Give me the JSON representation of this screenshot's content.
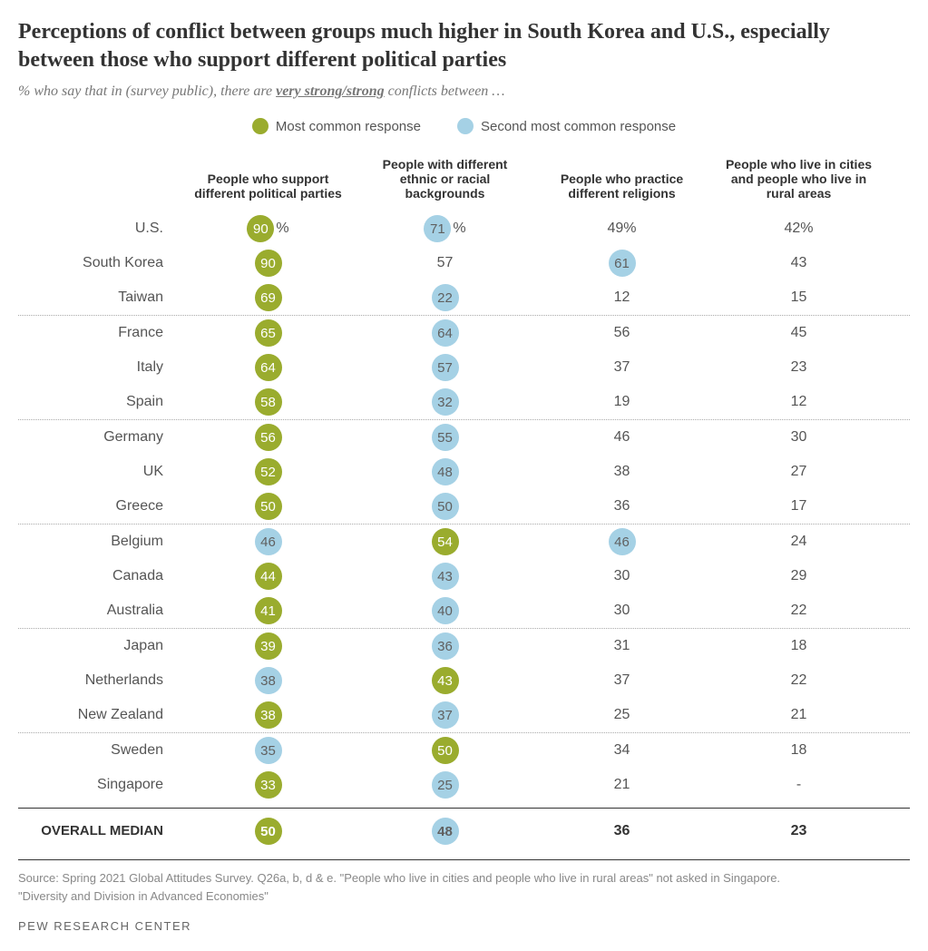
{
  "title": "Perceptions of conflict between groups much higher in South Korea and U.S., especially between those who support different political parties",
  "subtitle_pre": "% who say that in (survey public), there are ",
  "subtitle_highlight": "very strong/strong",
  "subtitle_post": " conflicts between …",
  "legend": {
    "most": "Most common response",
    "second": "Second most common response"
  },
  "colors": {
    "most": "#9aac2e",
    "second": "#a5d1e5",
    "background": "#ffffff",
    "text_second": "#606060"
  },
  "columns": [
    "People who support different political parties",
    "People with different ethnic or racial backgrounds",
    "People who practice different religions",
    "People who live in cities and people who live in rural areas"
  ],
  "groups": [
    [
      {
        "label": "U.S.",
        "values": [
          {
            "v": "90",
            "h": "most",
            "suffix": "%"
          },
          {
            "v": "71",
            "h": "second",
            "suffix": "%"
          },
          {
            "v": "49",
            "suffix": "%"
          },
          {
            "v": "42",
            "suffix": "%"
          }
        ]
      },
      {
        "label": "South Korea",
        "values": [
          {
            "v": "90",
            "h": "most"
          },
          {
            "v": "57"
          },
          {
            "v": "61",
            "h": "second"
          },
          {
            "v": "43"
          }
        ]
      },
      {
        "label": "Taiwan",
        "values": [
          {
            "v": "69",
            "h": "most"
          },
          {
            "v": "22",
            "h": "second"
          },
          {
            "v": "12"
          },
          {
            "v": "15"
          }
        ]
      }
    ],
    [
      {
        "label": "France",
        "values": [
          {
            "v": "65",
            "h": "most"
          },
          {
            "v": "64",
            "h": "second"
          },
          {
            "v": "56"
          },
          {
            "v": "45"
          }
        ]
      },
      {
        "label": "Italy",
        "values": [
          {
            "v": "64",
            "h": "most"
          },
          {
            "v": "57",
            "h": "second"
          },
          {
            "v": "37"
          },
          {
            "v": "23"
          }
        ]
      },
      {
        "label": "Spain",
        "values": [
          {
            "v": "58",
            "h": "most"
          },
          {
            "v": "32",
            "h": "second"
          },
          {
            "v": "19"
          },
          {
            "v": "12"
          }
        ]
      }
    ],
    [
      {
        "label": "Germany",
        "values": [
          {
            "v": "56",
            "h": "most"
          },
          {
            "v": "55",
            "h": "second"
          },
          {
            "v": "46"
          },
          {
            "v": "30"
          }
        ]
      },
      {
        "label": "UK",
        "values": [
          {
            "v": "52",
            "h": "most"
          },
          {
            "v": "48",
            "h": "second"
          },
          {
            "v": "38"
          },
          {
            "v": "27"
          }
        ]
      },
      {
        "label": "Greece",
        "values": [
          {
            "v": "50",
            "h": "most"
          },
          {
            "v": "50",
            "h": "second"
          },
          {
            "v": "36"
          },
          {
            "v": "17"
          }
        ]
      }
    ],
    [
      {
        "label": "Belgium",
        "values": [
          {
            "v": "46",
            "h": "second"
          },
          {
            "v": "54",
            "h": "most"
          },
          {
            "v": "46",
            "h": "second"
          },
          {
            "v": "24"
          }
        ]
      },
      {
        "label": "Canada",
        "values": [
          {
            "v": "44",
            "h": "most"
          },
          {
            "v": "43",
            "h": "second"
          },
          {
            "v": "30"
          },
          {
            "v": "29"
          }
        ]
      },
      {
        "label": "Australia",
        "values": [
          {
            "v": "41",
            "h": "most"
          },
          {
            "v": "40",
            "h": "second"
          },
          {
            "v": "30"
          },
          {
            "v": "22"
          }
        ]
      }
    ],
    [
      {
        "label": "Japan",
        "values": [
          {
            "v": "39",
            "h": "most"
          },
          {
            "v": "36",
            "h": "second"
          },
          {
            "v": "31"
          },
          {
            "v": "18"
          }
        ]
      },
      {
        "label": "Netherlands",
        "values": [
          {
            "v": "38",
            "h": "second"
          },
          {
            "v": "43",
            "h": "most"
          },
          {
            "v": "37"
          },
          {
            "v": "22"
          }
        ]
      },
      {
        "label": "New Zealand",
        "values": [
          {
            "v": "38",
            "h": "most"
          },
          {
            "v": "37",
            "h": "second"
          },
          {
            "v": "25"
          },
          {
            "v": "21"
          }
        ]
      }
    ],
    [
      {
        "label": "Sweden",
        "values": [
          {
            "v": "35",
            "h": "second"
          },
          {
            "v": "50",
            "h": "most"
          },
          {
            "v": "34"
          },
          {
            "v": "18"
          }
        ]
      },
      {
        "label": "Singapore",
        "values": [
          {
            "v": "33",
            "h": "most"
          },
          {
            "v": "25",
            "h": "second"
          },
          {
            "v": "21"
          },
          {
            "v": "-"
          }
        ]
      }
    ]
  ],
  "median": {
    "label": "OVERALL MEDIAN",
    "values": [
      {
        "v": "50",
        "h": "most"
      },
      {
        "v": "48",
        "h": "second"
      },
      {
        "v": "36"
      },
      {
        "v": "23"
      }
    ]
  },
  "source1": "Source: Spring 2021 Global Attitudes Survey. Q26a, b, d & e. \"People who live in cities and people who live in rural areas\" not asked in Singapore.",
  "source2": "\"Diversity and Division in Advanced Economies\"",
  "logo": "PEW RESEARCH CENTER"
}
